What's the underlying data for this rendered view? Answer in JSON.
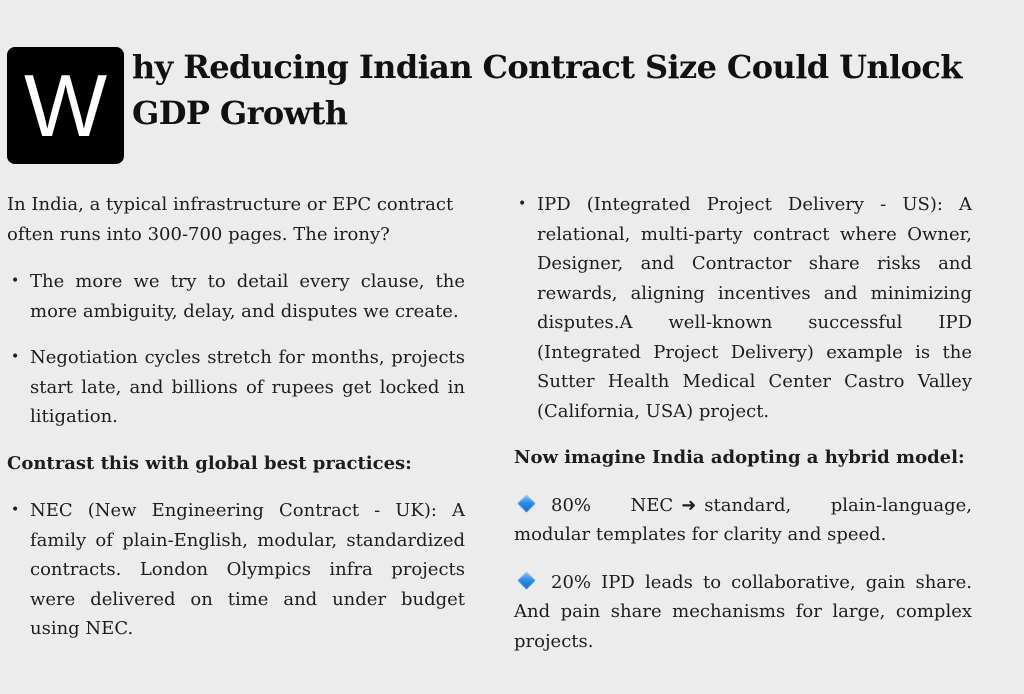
{
  "header": {
    "dropcap": "W",
    "title": "hy Reducing Indian Contract Size Could Unlock GDP Growth"
  },
  "left_column": {
    "intro": "In India, a typical infrastructure or EPC contract often runs into 300-700 pages. The irony?",
    "problems": [
      "The more we try to detail every clause, the more ambiguity, delay, and disputes we create.",
      "Negotiation cycles stretch for months, projects start late, and billions of rupees get locked in litigation."
    ],
    "contrast_heading": "Contrast this with global best practices:",
    "practices": [
      "NEC (New Engineering Contract - UK): A family of plain-English, modular, standardized contracts. London Olympics infra projects were delivered on time and under budget using NEC."
    ]
  },
  "right_column": {
    "practices": [
      "IPD (Integrated Project Delivery - US): A relational, multi-party contract where Owner, Designer, and Contractor share risks and rewards, aligning incentives and minimizing disputes.A well-known successful IPD (Integrated Project Delivery) example is the Sutter Health Medical Center Castro Valley (California, USA) project."
    ],
    "hybrid_heading": "Now imagine India adopting a hybrid model:",
    "hybrid_items": [
      {
        "lead": "80% NEC",
        "arrow": "➜",
        "rest": "standard, plain-language, modular templates for clarity and speed."
      },
      {
        "lead": "20% IPD leads to collaborative, gain share. And pain share mechanisms for large, complex projects.",
        "arrow": "",
        "rest": ""
      }
    ]
  },
  "icons": {
    "bullet": "•",
    "diamond": "small-blue-diamond-icon"
  },
  "colors": {
    "background": "#ececec",
    "dropcap_bg": "#000000",
    "text": "#1d1d1d",
    "diamond": "#2f8ee6"
  }
}
